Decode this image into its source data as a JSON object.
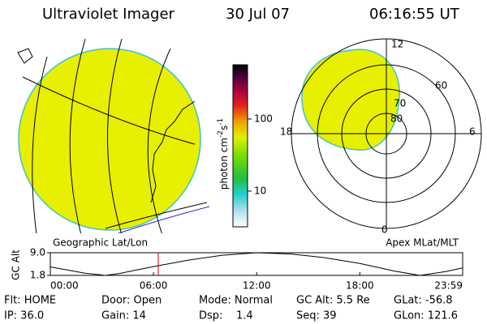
{
  "header": {
    "title": "Ultraviolet Imager",
    "date": "30 Jul 07",
    "time": "06:16:55 UT"
  },
  "colorbar": {
    "label": "photon cm",
    "exp1": "-2",
    "unit2": "s",
    "exp2": "-1",
    "range": [
      3.2,
      565
    ],
    "ticks": [
      10,
      100
    ]
  },
  "polar": {
    "labels": [
      "12",
      "18",
      "6",
      "0"
    ],
    "rings": [
      "60",
      "70",
      "80"
    ]
  },
  "chart_data": {
    "type": "line",
    "left_title": "Geographic Lat/Lon",
    "right_title": "Apex MLat/MLT",
    "ylabel": "GC Alt",
    "x": [
      0,
      1,
      2,
      3.2,
      4,
      5,
      6,
      8,
      10,
      12,
      14,
      16,
      18,
      20,
      21.5,
      23,
      23.98
    ],
    "values": [
      4.5,
      3.5,
      2.5,
      1.8,
      2.4,
      3.5,
      4.6,
      6.6,
      8.2,
      9.0,
      8.6,
      7.4,
      5.6,
      3.2,
      1.8,
      3.0,
      4.2
    ],
    "color": "#000000",
    "current_time": 6.28,
    "marker_color": "#c00000",
    "xlim": [
      0,
      23.98
    ],
    "ylim": [
      1.8,
      9.0
    ],
    "xticks": [
      {
        "value": 0,
        "label": "00:00"
      },
      {
        "value": 6,
        "label": "06:00"
      },
      {
        "value": 12,
        "label": "12:00"
      },
      {
        "value": 18,
        "label": "18:00"
      },
      {
        "value": 23.98,
        "label": "23:59"
      }
    ],
    "yticks": [
      {
        "value": 9.0,
        "label": "9.0"
      },
      1.8
    ]
  },
  "footer": {
    "rows": [
      [
        "Flt: HOME",
        "Door: Open",
        "Mode: Normal",
        "GC Alt: 5.5 Re",
        "GLat: -56.8"
      ],
      [
        "IP: 36.0",
        "Gain: 14",
        "Dsp:    1.4",
        "Seq: 39",
        "GLon: 121.6"
      ]
    ]
  }
}
